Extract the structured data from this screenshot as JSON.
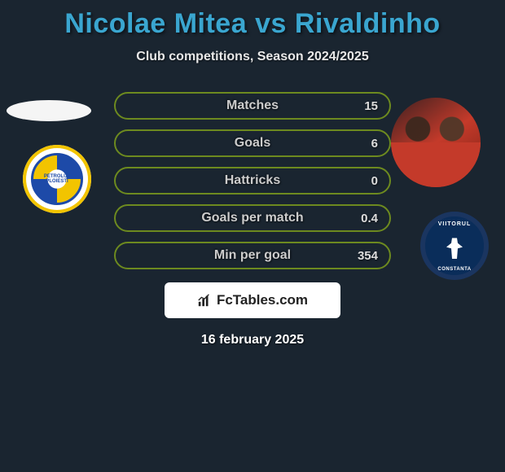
{
  "title": {
    "player1": "Nicolae Mitea",
    "vs": "vs",
    "player2": "Rivaldinho",
    "color": "#3aa6d0"
  },
  "subtitle": "Club competitions, Season 2024/2025",
  "stats": {
    "border_color": "#6d8a1f",
    "label_color": "#cccccc",
    "value_color": "#dddddd",
    "rows": [
      {
        "label": "Matches",
        "left": "",
        "right": "15"
      },
      {
        "label": "Goals",
        "left": "",
        "right": "6"
      },
      {
        "label": "Hattricks",
        "left": "",
        "right": "0"
      },
      {
        "label": "Goals per match",
        "left": "",
        "right": "0.4"
      },
      {
        "label": "Min per goal",
        "left": "",
        "right": "354"
      }
    ]
  },
  "club_left": {
    "name_top": "PETROLUL",
    "name_bot": "PLOIESTI"
  },
  "club_right": {
    "name_top": "VIITORUL",
    "name_bot": "CONSTANTA"
  },
  "brand": "FcTables.com",
  "date": "16 february 2025",
  "colors": {
    "background": "#1a2530"
  }
}
